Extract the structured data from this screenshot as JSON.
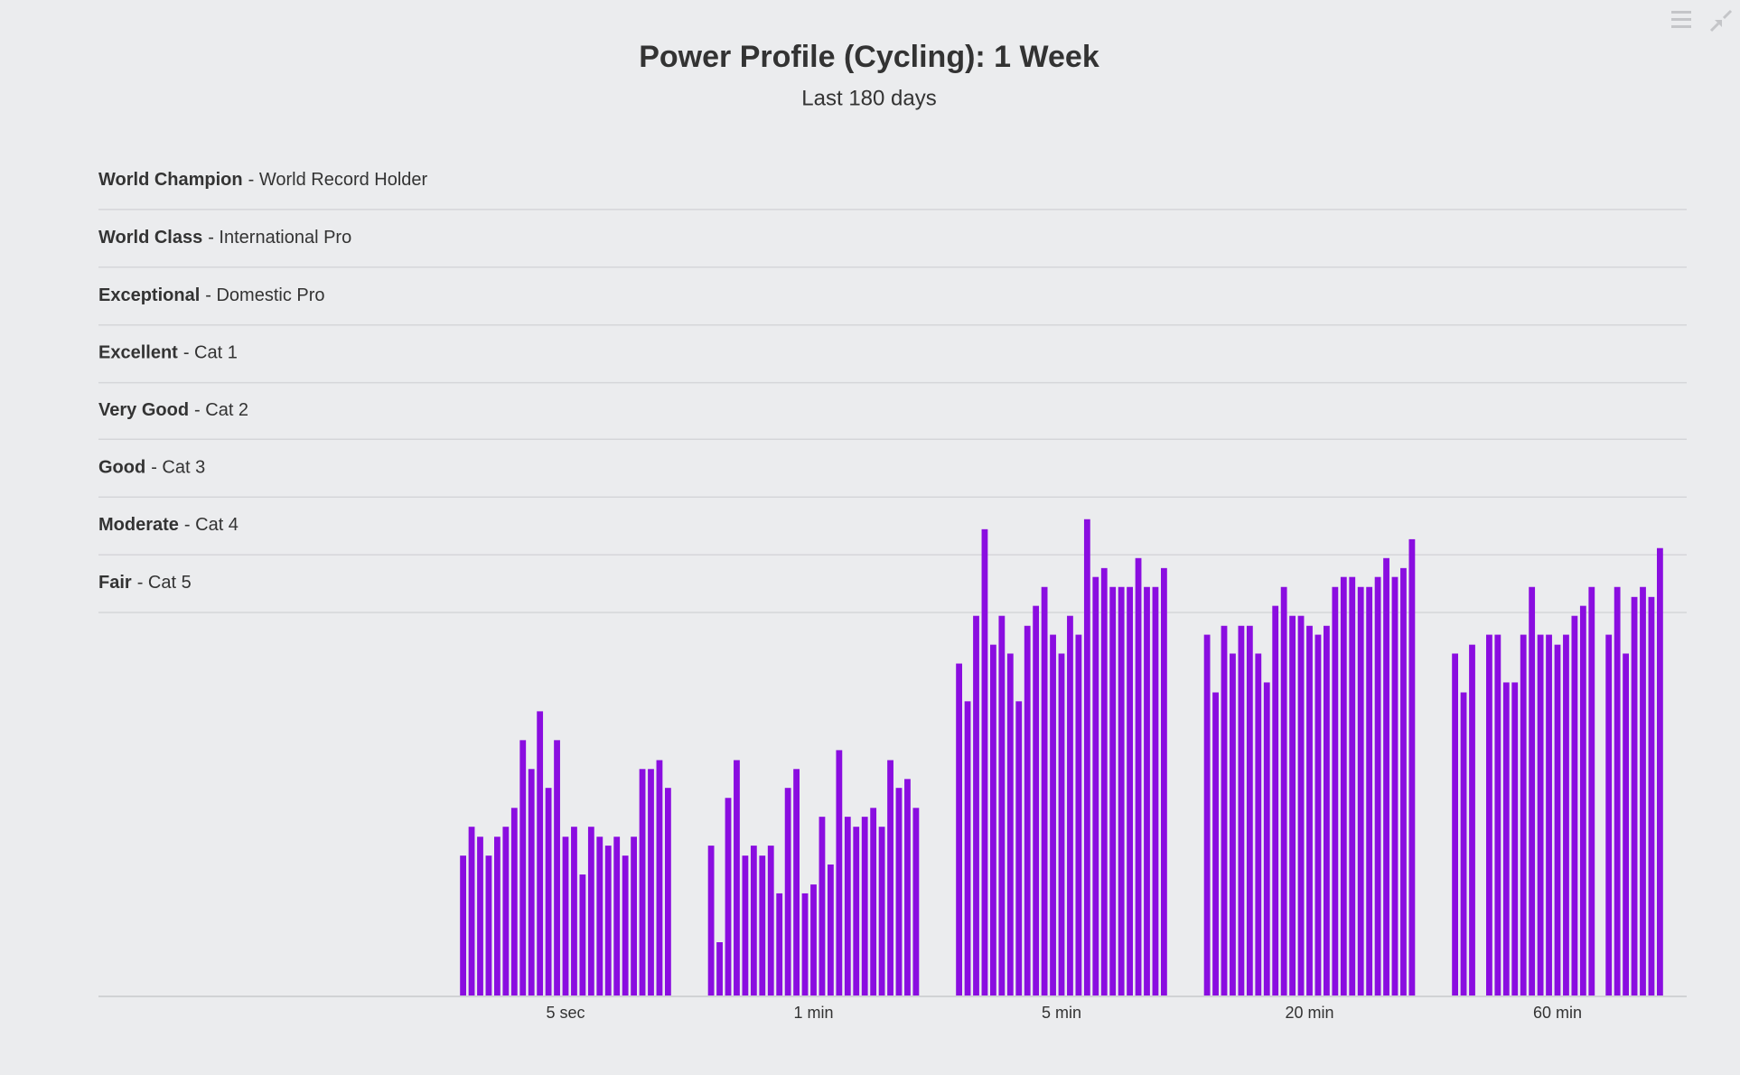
{
  "chart_data": {
    "type": "bar",
    "title": "Power Profile (Cycling): 1 Week",
    "subtitle": "Last 180 days",
    "categories": [
      "5 sec",
      "1 min",
      "5 min",
      "20 min",
      "60 min"
    ],
    "color": "#8a0de0",
    "ylim": [
      0,
      760
    ],
    "bands": [
      {
        "label": "World Champion",
        "description": "- World Record Holder",
        "from": 708,
        "to": 760
      },
      {
        "label": "World Class",
        "description": "- International Pro",
        "from": 656,
        "to": 708
      },
      {
        "label": "Exceptional",
        "description": "- Domestic Pro",
        "from": 604,
        "to": 656
      },
      {
        "label": "Excellent",
        "description": "- Cat 1",
        "from": 552,
        "to": 604
      },
      {
        "label": "Very Good",
        "description": "- Cat 2",
        "from": 501,
        "to": 552
      },
      {
        "label": "Good",
        "description": "- Cat 3",
        "from": 449,
        "to": 501
      },
      {
        "label": "Moderate",
        "description": "- Cat 4",
        "from": 397,
        "to": 449
      },
      {
        "label": "Fair",
        "description": "- Cat 5",
        "from": 345,
        "to": 397
      }
    ],
    "values": [
      [
        126,
        152,
        143,
        126,
        143,
        152,
        169,
        230,
        204,
        256,
        187,
        230,
        143,
        152,
        109,
        152,
        143,
        135,
        143,
        126,
        143,
        204,
        204,
        212,
        187
      ],
      [
        135,
        48,
        178,
        212,
        126,
        135,
        126,
        135,
        92,
        187,
        204,
        92,
        100,
        161,
        118,
        221,
        161,
        152,
        161,
        169,
        152,
        212,
        187,
        195,
        169
      ],
      [
        299,
        265,
        342,
        420,
        316,
        342,
        308,
        265,
        333,
        351,
        368,
        325,
        308,
        342,
        325,
        429,
        377,
        385,
        368,
        368,
        368,
        394,
        368,
        368,
        385
      ],
      [
        325,
        273,
        333,
        308,
        333,
        333,
        308,
        282,
        351,
        368,
        342,
        342,
        333,
        325,
        333,
        368,
        377,
        377,
        368,
        368,
        377,
        394,
        377,
        385,
        411
      ],
      [
        308,
        273,
        316,
        null,
        325,
        325,
        282,
        282,
        325,
        368,
        325,
        325,
        316,
        325,
        342,
        351,
        368,
        null,
        325,
        368,
        308,
        359,
        368,
        359,
        403
      ]
    ]
  }
}
